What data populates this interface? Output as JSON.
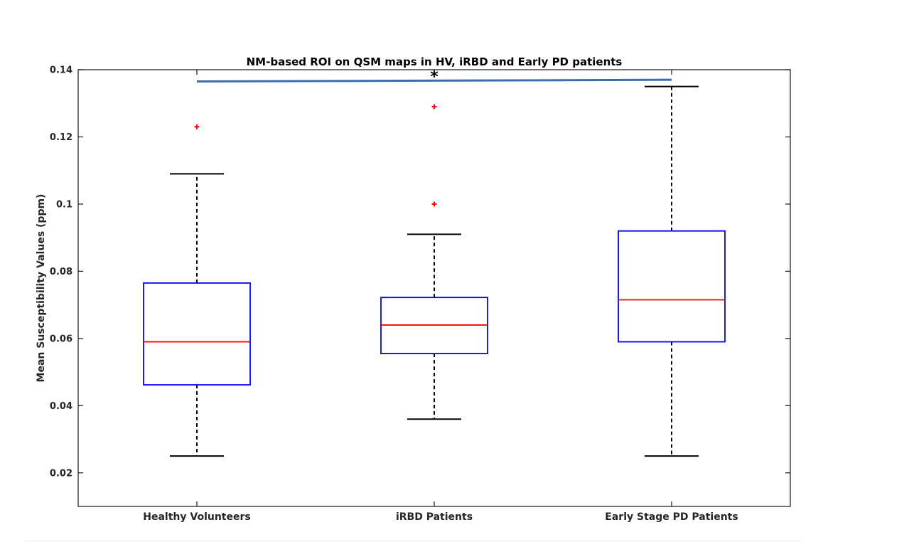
{
  "chart_data": {
    "type": "box",
    "title": "NM-based ROI on QSM maps in HV, iRBD and Early PD patients",
    "xlabel": "",
    "ylabel": "Mean Susceptibility Values (ppm)",
    "ylim": [
      0.01,
      0.14
    ],
    "yticks": [
      0.02,
      0.04,
      0.06,
      0.08,
      0.1,
      0.12,
      0.14
    ],
    "ytick_labels": [
      "0.02",
      "0.04",
      "0.06",
      "0.08",
      "0.1",
      "0.12",
      "0.14"
    ],
    "categories": [
      "Healthy Volunteers",
      "iRBD Patients",
      "Early Stage PD Patients"
    ],
    "boxes": [
      {
        "whisker_low": 0.025,
        "q1": 0.0462,
        "median": 0.059,
        "q3": 0.0765,
        "whisker_high": 0.109,
        "outliers": [
          0.123
        ]
      },
      {
        "whisker_low": 0.036,
        "q1": 0.0555,
        "median": 0.064,
        "q3": 0.0722,
        "whisker_high": 0.091,
        "outliers": [
          0.1,
          0.129
        ]
      },
      {
        "whisker_low": 0.025,
        "q1": 0.059,
        "median": 0.0715,
        "q3": 0.092,
        "whisker_high": 0.135,
        "outliers": []
      }
    ],
    "significance": {
      "from": 0,
      "to": 2,
      "y_start": 0.1365,
      "y_end": 0.137,
      "marker": "*",
      "color": "#3a6eb0"
    },
    "colors": {
      "box": "#0000ff",
      "median": "#ff0000",
      "outlier": "#ff0000",
      "whisker": "#000000",
      "axis": "#262626"
    },
    "grid": false
  }
}
